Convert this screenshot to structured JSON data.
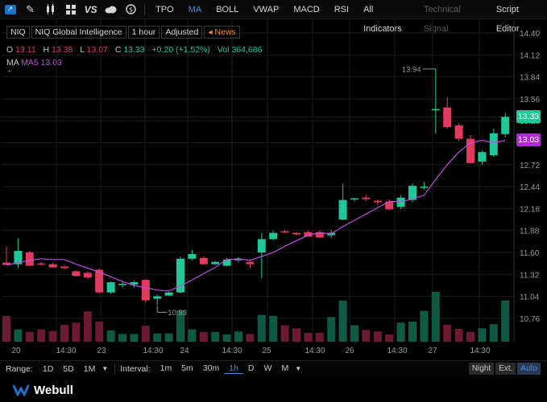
{
  "toolbar": {
    "icons": [
      "chart-type-icon",
      "draw-pen-icon",
      "candle-icon",
      "grid-layout-icon",
      "compare-vs-icon",
      "cloud-icon",
      "dollar-icon"
    ],
    "vs_label": "VS",
    "indicators": [
      "TPO",
      "MA",
      "BOLL",
      "VWAP",
      "MACD",
      "RSI",
      "All Indicators",
      "Technical Signal",
      "Script Editor"
    ],
    "active_indicator": "MA",
    "disabled_indicator": "Technical Signal"
  },
  "info": {
    "symbol": "NIQ",
    "name": "NIQ Global Intelligence",
    "interval": "1 hour",
    "adjust": "Adjusted",
    "news": "News",
    "open_label": "O",
    "open": "13.11",
    "high_label": "H",
    "high": "13.38",
    "low_label": "L",
    "low": "13.07",
    "close_label": "C",
    "close": "13.33",
    "change": "+0.20 (+1.52%)",
    "vol_label": "Vol",
    "vol": "364,686",
    "ma_label": "MA",
    "ma5_label": "MA5",
    "ma5": "13.03"
  },
  "tags": {
    "last": "13.33",
    "ma": "13.03"
  },
  "colors": {
    "up": "#1fc79a",
    "down": "#e23a5e",
    "ma": "#c34be0",
    "accent": "#3d8ee8"
  },
  "chart_data": {
    "type": "candlestick",
    "y_ticks": [
      "14.40",
      "14.12",
      "13.84",
      "13.56",
      "13.28",
      "13.00",
      "12.72",
      "12.44",
      "12.16",
      "11.88",
      "11.60",
      "11.32",
      "11.04",
      "10.76"
    ],
    "ylim": [
      10.7,
      14.45
    ],
    "x_tick_labels": [
      "20",
      "14:30",
      "23",
      "14:30",
      "24",
      "14:30",
      "25",
      "14:30",
      "26",
      "14:30",
      "27",
      "14:30"
    ],
    "high_annotation": "13.94",
    "low_annotation": "10.93",
    "candles": [
      {
        "o": 11.47,
        "h": 11.68,
        "l": 11.44,
        "c": 11.44
      },
      {
        "o": 11.45,
        "h": 11.78,
        "l": 11.4,
        "c": 11.62
      },
      {
        "o": 11.6,
        "h": 11.62,
        "l": 11.43,
        "c": 11.43
      },
      {
        "o": 11.46,
        "h": 11.48,
        "l": 11.43,
        "c": 11.45
      },
      {
        "o": 11.45,
        "h": 11.47,
        "l": 11.4,
        "c": 11.41
      },
      {
        "o": 11.42,
        "h": 11.44,
        "l": 11.37,
        "c": 11.4
      },
      {
        "o": 11.36,
        "h": 11.37,
        "l": 11.29,
        "c": 11.3
      },
      {
        "o": 11.34,
        "h": 11.36,
        "l": 11.26,
        "c": 11.28
      },
      {
        "o": 11.38,
        "h": 11.4,
        "l": 11.07,
        "c": 11.09
      },
      {
        "o": 11.09,
        "h": 11.23,
        "l": 11.07,
        "c": 11.22
      },
      {
        "o": 11.19,
        "h": 11.22,
        "l": 11.15,
        "c": 11.2
      },
      {
        "o": 11.19,
        "h": 11.24,
        "l": 11.15,
        "c": 11.22
      },
      {
        "o": 11.25,
        "h": 11.26,
        "l": 10.96,
        "c": 10.99
      },
      {
        "o": 11.01,
        "h": 11.06,
        "l": 10.93,
        "c": 11.04
      },
      {
        "o": 11.05,
        "h": 11.1,
        "l": 11.04,
        "c": 11.09
      },
      {
        "o": 11.09,
        "h": 11.55,
        "l": 11.08,
        "c": 11.52
      },
      {
        "o": 11.52,
        "h": 11.63,
        "l": 11.5,
        "c": 11.58
      },
      {
        "o": 11.53,
        "h": 11.55,
        "l": 11.44,
        "c": 11.45
      },
      {
        "o": 11.45,
        "h": 11.49,
        "l": 11.44,
        "c": 11.48
      },
      {
        "o": 11.43,
        "h": 11.53,
        "l": 11.42,
        "c": 11.51
      },
      {
        "o": 11.5,
        "h": 11.54,
        "l": 11.47,
        "c": 11.52
      },
      {
        "o": 11.48,
        "h": 11.51,
        "l": 11.4,
        "c": 11.45
      },
      {
        "o": 11.6,
        "h": 11.85,
        "l": 11.27,
        "c": 11.77
      },
      {
        "o": 11.77,
        "h": 11.88,
        "l": 11.75,
        "c": 11.85
      },
      {
        "o": 11.87,
        "h": 11.89,
        "l": 11.84,
        "c": 11.86
      },
      {
        "o": 11.85,
        "h": 11.86,
        "l": 11.81,
        "c": 11.83
      },
      {
        "o": 11.86,
        "h": 11.88,
        "l": 11.8,
        "c": 11.8
      },
      {
        "o": 11.86,
        "h": 11.88,
        "l": 11.78,
        "c": 11.79
      },
      {
        "o": 11.82,
        "h": 11.89,
        "l": 11.78,
        "c": 11.85
      },
      {
        "o": 12.02,
        "h": 12.48,
        "l": 12.01,
        "c": 12.27
      },
      {
        "o": 12.28,
        "h": 12.3,
        "l": 12.25,
        "c": 12.29
      },
      {
        "o": 12.3,
        "h": 12.33,
        "l": 12.26,
        "c": 12.28
      },
      {
        "o": 12.26,
        "h": 12.28,
        "l": 12.2,
        "c": 12.24
      },
      {
        "o": 12.25,
        "h": 12.28,
        "l": 12.14,
        "c": 12.15
      },
      {
        "o": 12.18,
        "h": 12.33,
        "l": 12.15,
        "c": 12.3
      },
      {
        "o": 12.27,
        "h": 12.48,
        "l": 12.24,
        "c": 12.45
      },
      {
        "o": 12.44,
        "h": 12.5,
        "l": 12.4,
        "c": 12.44
      },
      {
        "o": 13.42,
        "h": 13.94,
        "l": 13.12,
        "c": 13.43
      },
      {
        "o": 13.45,
        "h": 13.58,
        "l": 13.18,
        "c": 13.2
      },
      {
        "o": 13.22,
        "h": 13.25,
        "l": 13.02,
        "c": 13.05
      },
      {
        "o": 13.05,
        "h": 13.1,
        "l": 12.74,
        "c": 12.74
      },
      {
        "o": 12.76,
        "h": 12.9,
        "l": 12.72,
        "c": 12.88
      },
      {
        "o": 12.84,
        "h": 13.18,
        "l": 12.82,
        "c": 13.12
      },
      {
        "o": 13.11,
        "h": 13.38,
        "l": 13.07,
        "c": 13.33
      }
    ],
    "ma5": [
      11.44,
      11.47,
      11.5,
      11.52,
      11.51,
      11.51,
      11.45,
      11.4,
      11.35,
      11.29,
      11.23,
      11.18,
      11.15,
      11.12,
      11.11,
      11.17,
      11.25,
      11.33,
      11.41,
      11.51,
      11.52,
      11.5,
      11.55,
      11.6,
      11.68,
      11.75,
      11.82,
      11.85,
      11.84,
      11.93,
      12.01,
      12.09,
      12.17,
      12.25,
      12.25,
      12.28,
      12.33,
      12.53,
      12.72,
      12.88,
      13.0,
      13.03,
      13.0,
      13.03
    ],
    "volume": [
      0.5,
      0.24,
      0.19,
      0.24,
      0.21,
      0.33,
      0.37,
      0.59,
      0.39,
      0.22,
      0.15,
      0.15,
      0.31,
      0.16,
      0.16,
      0.61,
      0.24,
      0.19,
      0.19,
      0.14,
      0.2,
      0.15,
      0.52,
      0.5,
      0.32,
      0.26,
      0.17,
      0.17,
      0.48,
      0.8,
      0.32,
      0.23,
      0.2,
      0.14,
      0.37,
      0.39,
      0.6,
      0.97,
      0.33,
      0.25,
      0.19,
      0.26,
      0.34,
      0.8
    ]
  },
  "rangebar": {
    "range_label": "Range:",
    "ranges": [
      "1D",
      "5D",
      "1M"
    ],
    "interval_label": "Interval:",
    "intervals": [
      "1m",
      "5m",
      "30m",
      "1h",
      "D",
      "W",
      "M"
    ],
    "active_interval": "1h",
    "toggles": [
      "Night",
      "Ext.",
      "Auto"
    ],
    "active_toggle": "Auto"
  },
  "footer": {
    "brand": "Webull"
  }
}
